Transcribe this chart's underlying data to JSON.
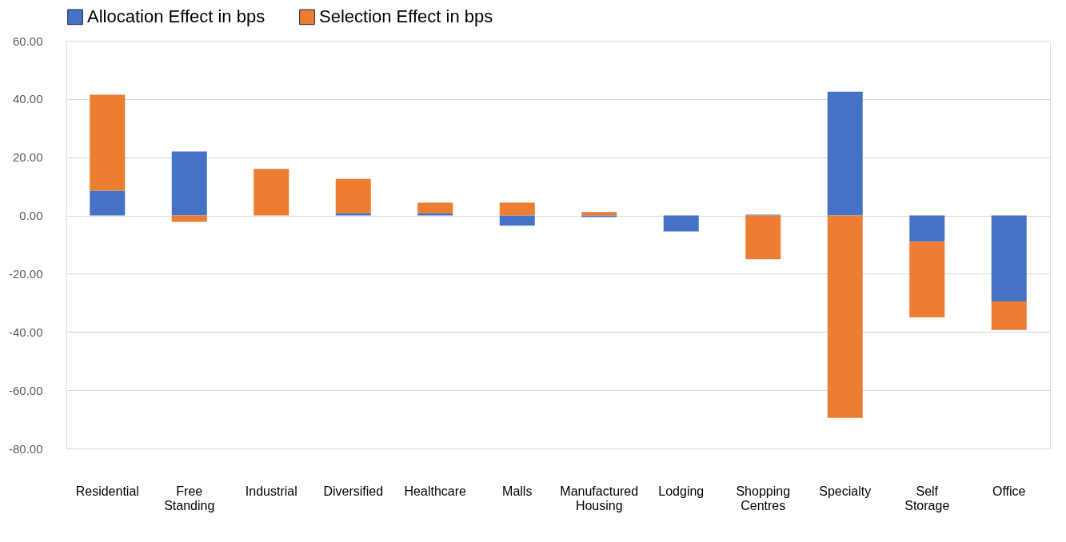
{
  "chart_data": {
    "type": "bar",
    "stacked": true,
    "categories": [
      "Residential",
      "Free Standing",
      "Industrial",
      "Diversified",
      "Healthcare",
      "Malls",
      "Manufactured Housing",
      "Lodging",
      "Shopping Centres",
      "Specialty",
      "Self Storage",
      "Office"
    ],
    "series": [
      {
        "name": "Allocation Effect in bps",
        "color": "#4472c4",
        "values": [
          8.5,
          22,
          0,
          0.8,
          0.8,
          -3.5,
          -0.5,
          -5.5,
          0.3,
          42.5,
          -9,
          -29.5
        ]
      },
      {
        "name": "Selection Effect in bps",
        "color": "#ed7d31",
        "values": [
          33,
          -2.2,
          16,
          11.8,
          3.6,
          4.4,
          1.2,
          0,
          -15,
          -69.5,
          -26,
          -9.8
        ]
      }
    ],
    "ylim": [
      -80,
      60
    ],
    "yticks": [
      {
        "value": -80,
        "label": "-80.00"
      },
      {
        "value": -60,
        "label": "-60.00"
      },
      {
        "value": -40,
        "label": "-40.00"
      },
      {
        "value": -20,
        "label": "-20.00"
      },
      {
        "value": 0,
        "label": "0.00"
      },
      {
        "value": 20,
        "label": "20.00"
      },
      {
        "value": 40,
        "label": "40.00"
      },
      {
        "value": 60,
        "label": "60.00"
      }
    ],
    "grid": "y",
    "legend": "top"
  }
}
